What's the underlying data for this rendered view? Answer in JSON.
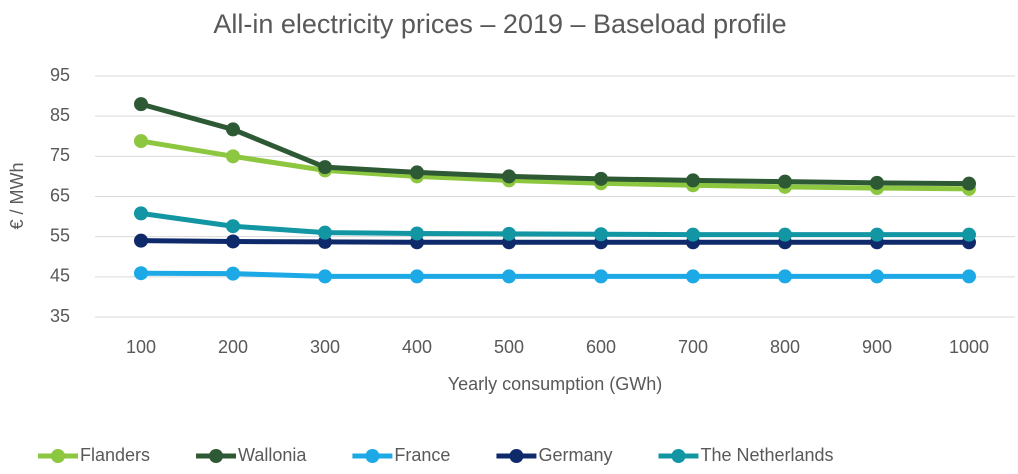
{
  "chart_data": {
    "type": "line",
    "title": "All-in electricity prices – 2019 – Baseload profile",
    "x_label": "Yearly consumption (GWh)",
    "y_label": "€ / MWh",
    "categories": [
      "100",
      "200",
      "300",
      "400",
      "500",
      "600",
      "700",
      "800",
      "900",
      "1000"
    ],
    "series": [
      {
        "name": "Flanders",
        "color": "#8dc63f",
        "values": [
          78.8,
          75,
          71.5,
          70,
          69,
          68.3,
          67.8,
          67.4,
          67.1,
          66.9
        ]
      },
      {
        "name": "Wallonia",
        "color": "#2d5a34",
        "values": [
          88,
          81.7,
          72.3,
          71,
          70,
          69.4,
          69,
          68.7,
          68.4,
          68.2
        ]
      },
      {
        "name": "France",
        "color": "#1ca9e6",
        "values": [
          45.9,
          45.8,
          45.1,
          45.1,
          45.1,
          45.1,
          45.1,
          45.1,
          45.1,
          45.1
        ]
      },
      {
        "name": "Germany",
        "color": "#0f2a6b",
        "values": [
          54,
          53.8,
          53.7,
          53.6,
          53.6,
          53.6,
          53.6,
          53.6,
          53.6,
          53.6
        ]
      },
      {
        "name": "The Netherlands",
        "color": "#1396a3",
        "values": [
          60.8,
          57.6,
          56,
          55.8,
          55.7,
          55.6,
          55.5,
          55.5,
          55.5,
          55.5
        ]
      }
    ],
    "ylim": [
      35,
      95
    ],
    "yticks": [
      35,
      45,
      55,
      65,
      75,
      85,
      95
    ],
    "grid": true,
    "legend": "bottom"
  }
}
